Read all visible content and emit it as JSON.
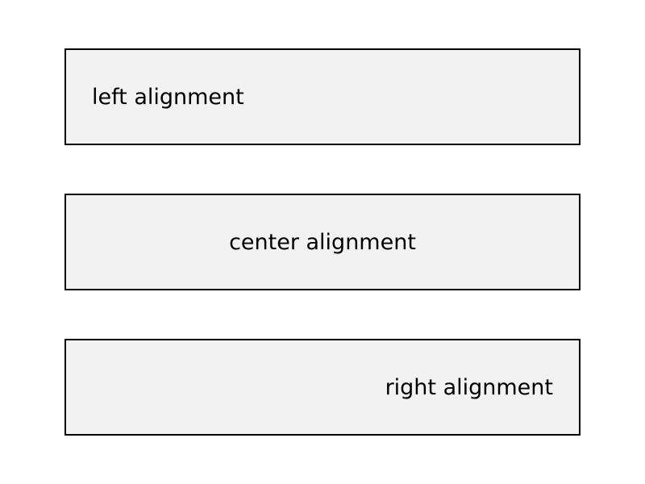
{
  "boxes": {
    "left": {
      "text": "left alignment",
      "align": "left"
    },
    "center": {
      "text": "center alignment",
      "align": "center"
    },
    "right": {
      "text": "right alignment",
      "align": "right"
    }
  },
  "colors": {
    "box_fill": "#f2f2f2",
    "box_border": "#000000",
    "text": "#000000",
    "background": "#ffffff"
  }
}
